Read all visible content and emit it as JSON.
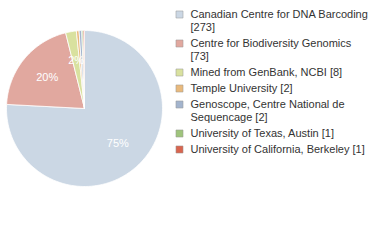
{
  "chart_data": {
    "type": "pie",
    "categories": [
      "Canadian Centre for DNA Barcoding [273]",
      "Centre for Biodiversity Genomics [73]",
      "Mined from GenBank, NCBI [8]",
      "Temple University [2]",
      "Genoscope, Centre National de Sequencage [2]",
      "University of Texas, Austin [1]",
      "University of California, Berkeley [1]"
    ],
    "values": [
      273,
      73,
      8,
      2,
      2,
      1,
      1
    ],
    "percent_labels": [
      "75%",
      "20%",
      "2%",
      null,
      null,
      null,
      null
    ],
    "colors": [
      "#cbd7e4",
      "#e1a89f",
      "#d9e19f",
      "#e9b97c",
      "#a3b4cd",
      "#9fc47c",
      "#d9654f"
    ],
    "legend": "right"
  }
}
